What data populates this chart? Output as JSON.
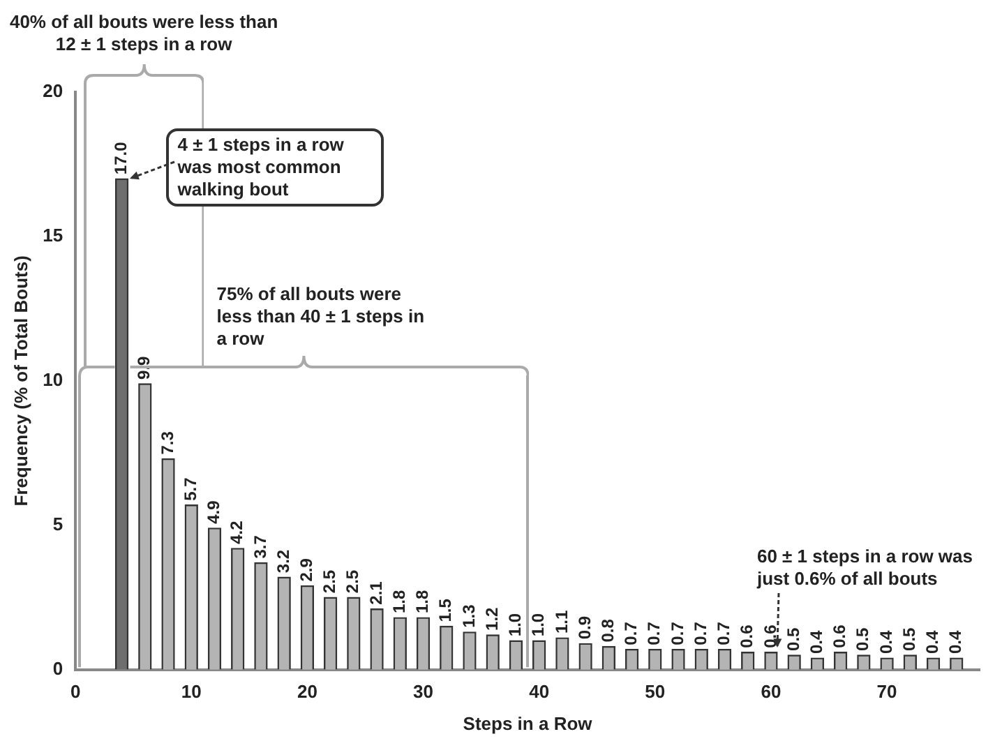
{
  "chart_data": {
    "type": "bar",
    "xlabel": "Steps in a Row",
    "ylabel": "Frequency (% of Total Bouts)",
    "x": [
      4,
      6,
      8,
      10,
      12,
      14,
      16,
      18,
      20,
      22,
      24,
      26,
      28,
      30,
      32,
      34,
      36,
      38,
      40,
      42,
      44,
      46,
      48,
      50,
      52,
      54,
      56,
      58,
      60,
      62,
      64,
      66,
      68,
      70,
      72,
      74,
      76
    ],
    "values": [
      17.0,
      9.9,
      7.3,
      5.7,
      4.9,
      4.2,
      3.7,
      3.2,
      2.9,
      2.5,
      2.5,
      2.1,
      1.8,
      1.8,
      1.5,
      1.3,
      1.2,
      1.0,
      1.0,
      1.1,
      0.9,
      0.8,
      0.7,
      0.7,
      0.7,
      0.7,
      0.7,
      0.6,
      0.6,
      0.5,
      0.4,
      0.6,
      0.5,
      0.4,
      0.5,
      0.4,
      0.4
    ],
    "colors": [
      "#6e6e6e",
      "#b4b4b4",
      "#b4b4b4",
      "#b4b4b4",
      "#b4b4b4",
      "#b4b4b4",
      "#b4b4b4",
      "#b4b4b4",
      "#b4b4b4",
      "#b4b4b4",
      "#b4b4b4",
      "#b4b4b4",
      "#b4b4b4",
      "#b4b4b4",
      "#b4b4b4",
      "#b4b4b4",
      "#b4b4b4",
      "#b4b4b4",
      "#b4b4b4",
      "#b4b4b4",
      "#b4b4b4",
      "#b4b4b4",
      "#b4b4b4",
      "#b4b4b4",
      "#b4b4b4",
      "#b4b4b4",
      "#b4b4b4",
      "#b4b4b4",
      "#b4b4b4",
      "#b4b4b4",
      "#b4b4b4",
      "#b4b4b4",
      "#b4b4b4",
      "#b4b4b4",
      "#b4b4b4",
      "#b4b4b4",
      "#b4b4b4"
    ],
    "value_labels": [
      "17.0",
      "9.9",
      "7.3",
      "5.7",
      "4.9",
      "4.2",
      "3.7",
      "3.2",
      "2.9",
      "2.5",
      "2.5",
      "2.1",
      "1.8",
      "1.8",
      "1.5",
      "1.3",
      "1.2",
      "1.0",
      "1.0",
      "1.1",
      "0.9",
      "0.8",
      "0.7",
      "0.7",
      "0.7",
      "0.7",
      "0.7",
      "0.6",
      "0.6",
      "0.5",
      "0.4",
      "0.6",
      "0.5",
      "0.4",
      "0.5",
      "0.4",
      "0.4"
    ],
    "xlim": [
      0,
      78
    ],
    "xticks": [
      0,
      10,
      20,
      30,
      40,
      50,
      60,
      70
    ],
    "ylim": [
      0,
      20
    ],
    "yticks": [
      0,
      5,
      10,
      15,
      20
    ],
    "grid": false,
    "legend": false,
    "annotations": [
      "40% of all bouts were less than 12 ± 1 steps in a row",
      "75% of all bouts were less than 40 ± 1 steps in a row",
      {
        "text": "4 ± 1 steps in a row was most common walking bout",
        "x": 4,
        "y": 17.0
      },
      {
        "text": "60 ± 1 steps in a row was just 0.6% of all bouts",
        "x": 60,
        "y": 0.6
      }
    ]
  }
}
